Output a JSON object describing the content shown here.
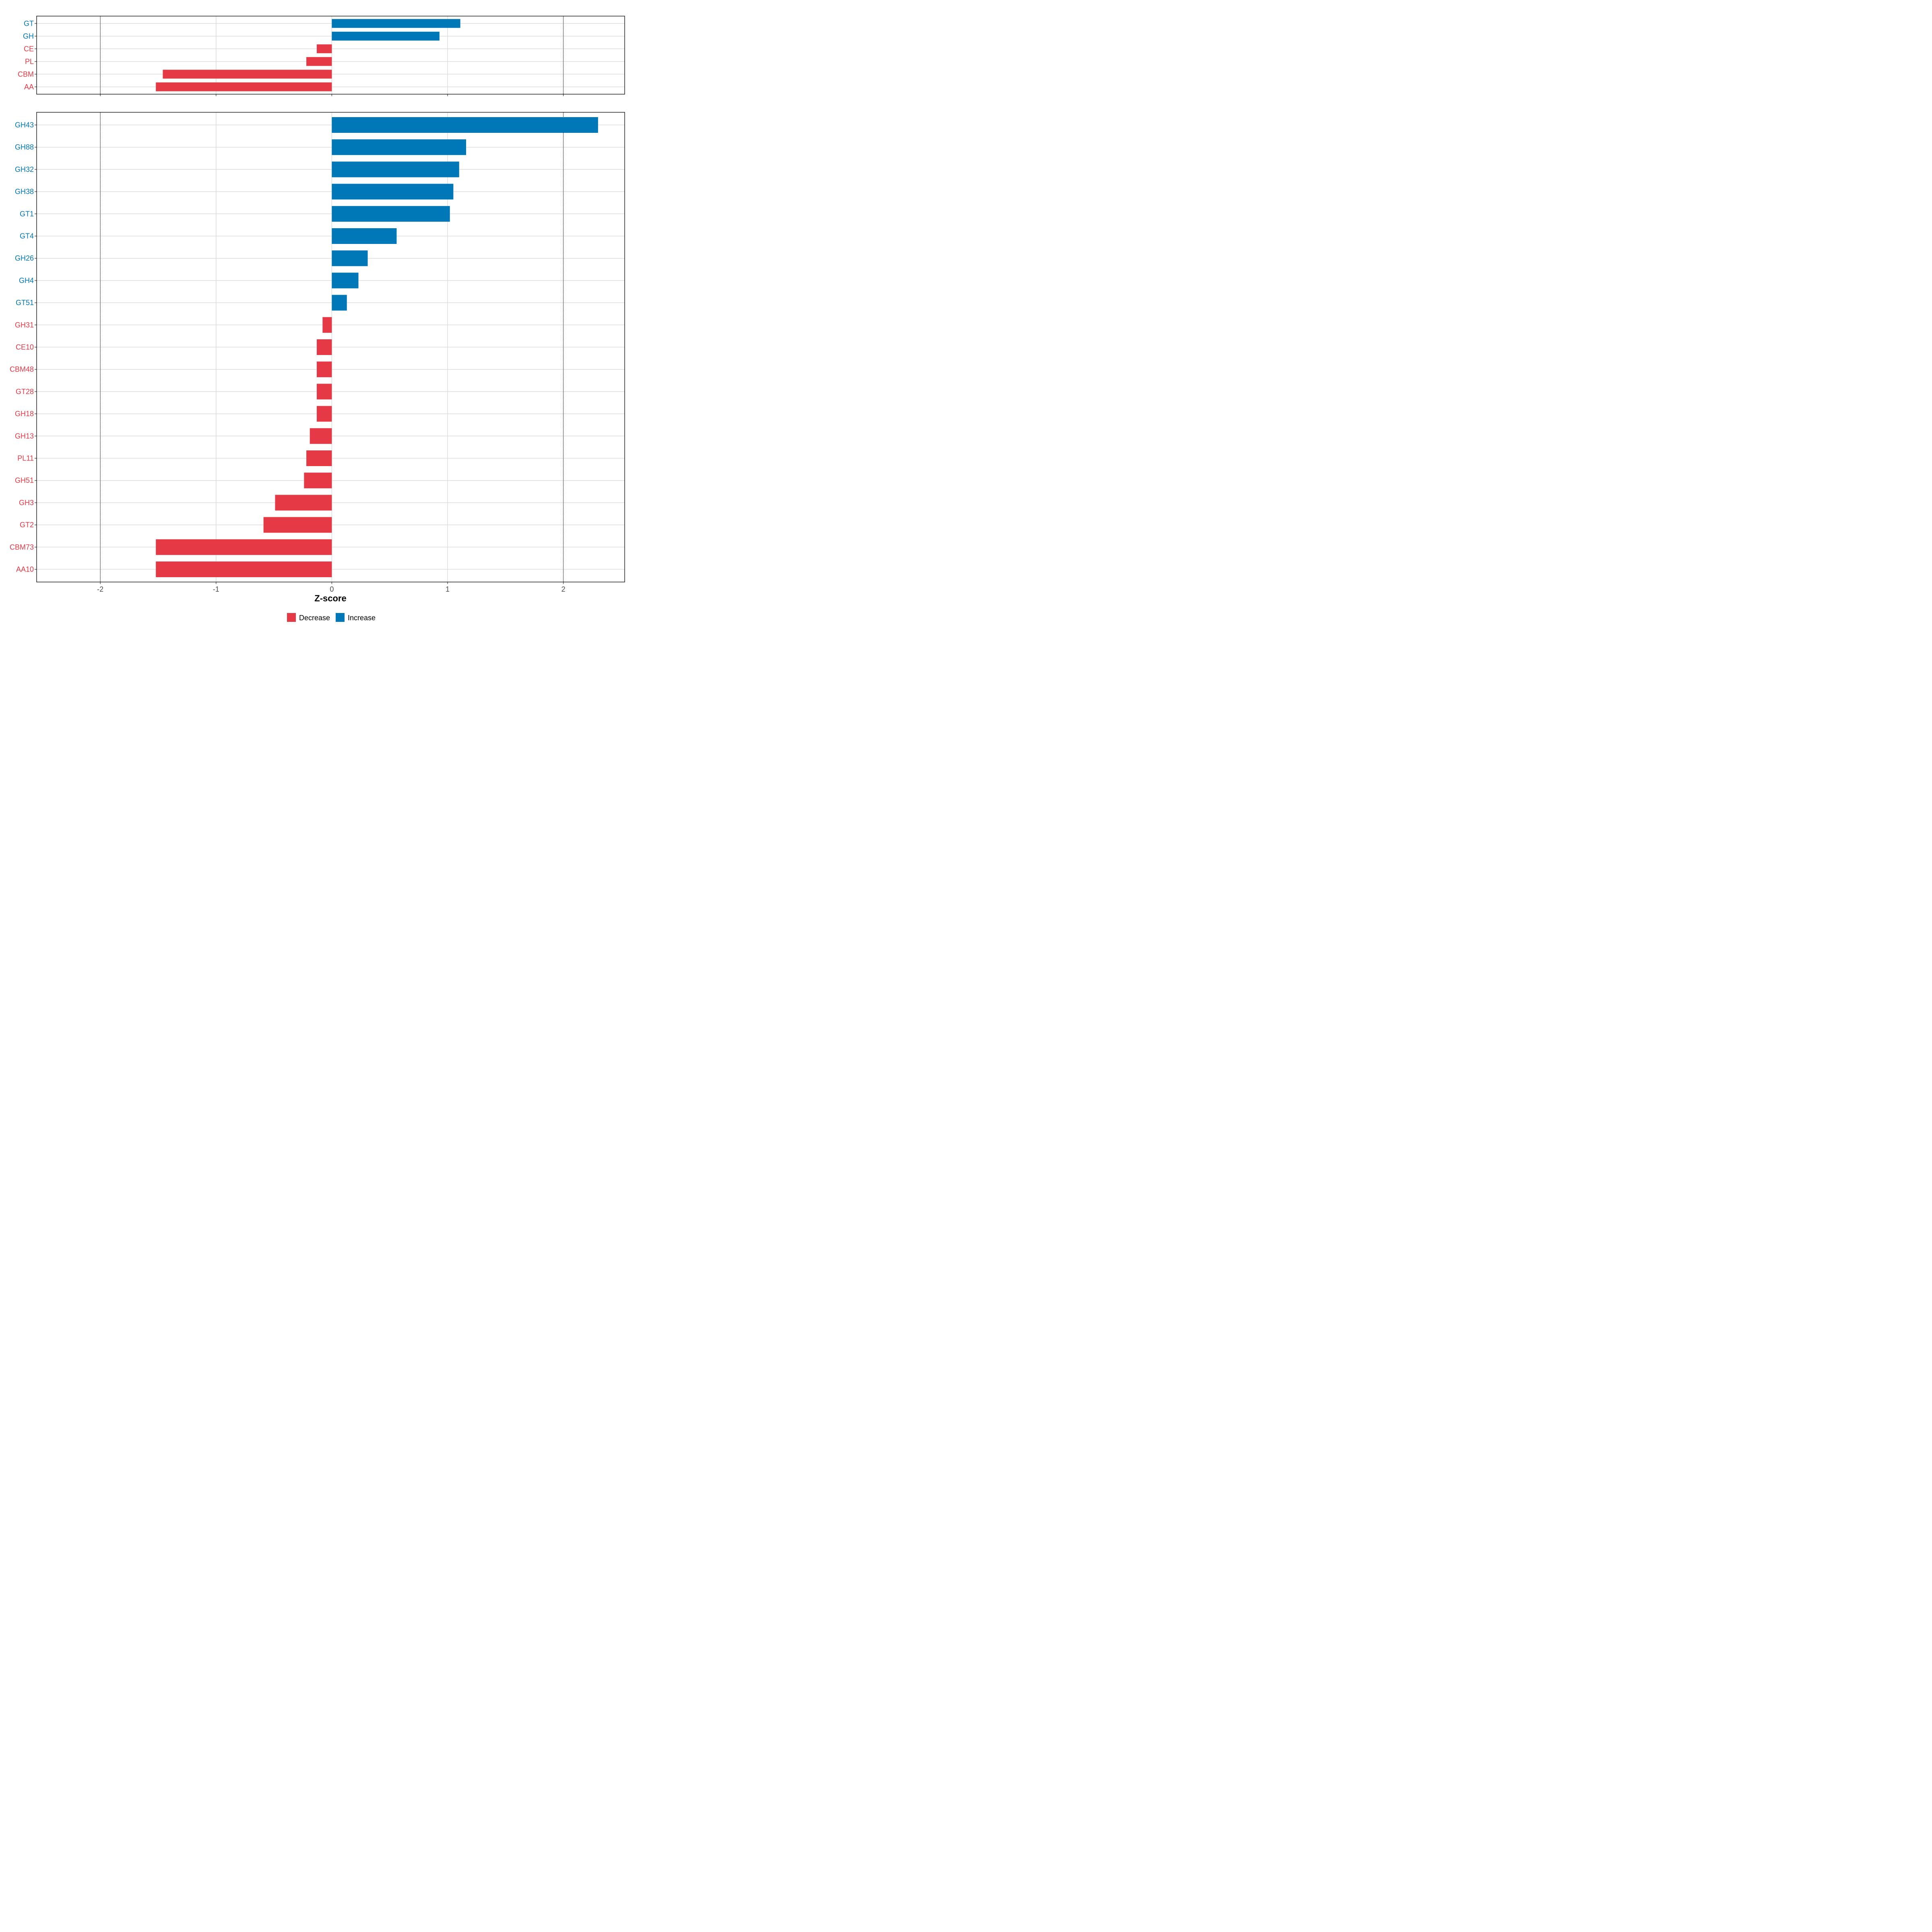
{
  "chart_data": {
    "type": "bar",
    "orientation": "horizontal",
    "xlabel": "Z-score",
    "xlim": [
      -2.55,
      2.53
    ],
    "x_ticks": [
      -2,
      -1,
      0,
      1,
      2
    ],
    "x_tick_labels": [
      "-2",
      "-1",
      "0",
      "1",
      "2"
    ],
    "reference_lines": [
      -2,
      2
    ],
    "grid": true,
    "legend_position": "bottom",
    "legend": [
      {
        "key": "decrease",
        "label": "Decrease",
        "color": "#e63946"
      },
      {
        "key": "increase",
        "label": "Increase",
        "color": "#0077b6"
      }
    ],
    "colors": {
      "decrease": "#e63946",
      "increase": "#0077b6"
    },
    "panels": [
      {
        "name": "classes",
        "categories": [
          "GT",
          "GH",
          "CE",
          "PL",
          "CBM",
          "AA"
        ],
        "values": [
          1.11,
          0.93,
          -0.13,
          -0.22,
          -1.46,
          -1.52
        ]
      },
      {
        "name": "families",
        "categories": [
          "GH43",
          "GH88",
          "GH32",
          "GH38",
          "GT1",
          "GT4",
          "GH26",
          "GH4",
          "GT51",
          "GH31",
          "CE10",
          "CBM48",
          "GT28",
          "GH18",
          "GH13",
          "PL11",
          "GH51",
          "GH3",
          "GT2",
          "CBM73",
          "AA10"
        ],
        "values": [
          2.3,
          1.16,
          1.1,
          1.05,
          1.02,
          0.56,
          0.31,
          0.23,
          0.13,
          -0.08,
          -0.13,
          -0.13,
          -0.13,
          -0.13,
          -0.19,
          -0.22,
          -0.24,
          -0.49,
          -0.59,
          -1.52,
          -1.52
        ]
      }
    ]
  }
}
